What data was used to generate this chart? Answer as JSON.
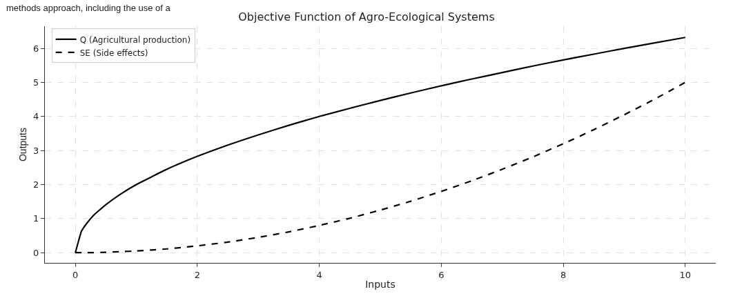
{
  "chart_data": {
    "type": "line",
    "title": "Objective Function of Agro-Ecological Systems",
    "xlabel": "Inputs",
    "ylabel": "Outputs",
    "annotations": [
      "methods approach, including the use of a"
    ],
    "x": [
      0,
      0.1,
      0.2,
      0.3,
      0.5,
      0.75,
      1,
      1.5,
      2,
      2.5,
      3,
      3.5,
      4,
      4.5,
      5,
      5.5,
      6,
      6.5,
      7,
      7.5,
      8,
      8.5,
      9,
      9.5,
      10
    ],
    "series": [
      {
        "name": "Q (Agricultural production)",
        "color": "#000000",
        "line_style": "solid",
        "values": [
          0,
          0.63,
          0.89,
          1.1,
          1.41,
          1.73,
          2,
          2.45,
          2.83,
          3.16,
          3.46,
          3.74,
          4,
          4.24,
          4.47,
          4.69,
          4.9,
          5.1,
          5.29,
          5.48,
          5.66,
          5.83,
          6,
          6.16,
          6.32
        ]
      },
      {
        "name": "SE (Side effects)",
        "color": "#000000",
        "line_style": "dashed",
        "values": [
          0,
          0,
          0,
          0,
          0.01,
          0.03,
          0.05,
          0.11,
          0.2,
          0.31,
          0.45,
          0.61,
          0.8,
          1.01,
          1.25,
          1.51,
          1.8,
          2.11,
          2.45,
          2.81,
          3.2,
          3.61,
          4.05,
          4.51,
          5
        ]
      }
    ],
    "xlim": [
      -0.5,
      10.5
    ],
    "ylim": [
      -0.3,
      6.65
    ],
    "xticks": [
      0,
      2,
      4,
      6,
      8,
      10
    ],
    "yticks": [
      0,
      1,
      2,
      3,
      4,
      5,
      6
    ],
    "grid": true,
    "legend": "top left",
    "marker": "none"
  }
}
